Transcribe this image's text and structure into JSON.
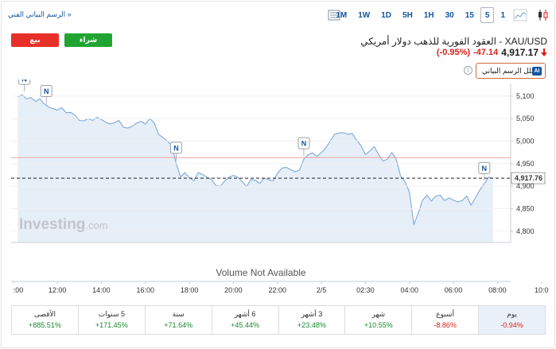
{
  "toolbar": {
    "fullscreen_label": "الرسم البياني الفني »",
    "intervals": [
      "1M",
      "1W",
      "1D",
      "5H",
      "1H",
      "30",
      "15",
      "5",
      "1"
    ],
    "selected_interval": "5"
  },
  "instrument": {
    "title": "XAU/USD - العقود الفورية للذهب دولار أمريكي",
    "price": "4,917.17",
    "change": "-47.14",
    "change_pct": "(-0.95%)"
  },
  "buttons": {
    "buy": "شراء",
    "sell": "بيع",
    "analyze": "حلل الرسم البياني",
    "ai_badge": "AI"
  },
  "colors": {
    "line": "#7fa9d6",
    "area": "#e6eef8",
    "down": "#d91e18",
    "up": "#1a8a2c",
    "buy": "#20a532",
    "sell": "#e8302a"
  },
  "chart_data": {
    "type": "area",
    "watermark": "Investing.com",
    "no_volume_text": "Volume Not Available",
    "x_ticks": [
      ":00",
      "12:00",
      "14:00",
      "16:00",
      "18:00",
      "20:00",
      "22:00",
      "2/5",
      "02:30",
      "04:00",
      "06:00",
      "08:00",
      "10:0"
    ],
    "y_ticks": [
      5100,
      5050,
      5000,
      4950,
      4900,
      4850,
      4800
    ],
    "ylim": [
      4775,
      5128
    ],
    "reference_level": 4963.5,
    "last_value": 4917.76,
    "last_label": "4,917.76",
    "news_marker_label": "N",
    "news_markers_hour": [
      0.3,
      1.3,
      7.2,
      13.0,
      21.2
    ],
    "x_hours": [
      0,
      0.2,
      0.4,
      0.6,
      0.8,
      1.0,
      1.2,
      1.4,
      1.6,
      1.8,
      2.0,
      2.2,
      2.4,
      2.6,
      2.8,
      3.0,
      3.2,
      3.4,
      3.6,
      3.8,
      4.0,
      4.2,
      4.4,
      4.6,
      4.8,
      5.0,
      5.2,
      5.4,
      5.6,
      5.8,
      6.0,
      6.2,
      6.4,
      6.6,
      6.8,
      7.0,
      7.2,
      7.4,
      7.6,
      7.8,
      8.0,
      8.2,
      8.4,
      8.6,
      8.8,
      9.0,
      9.2,
      9.4,
      9.6,
      9.8,
      10.0,
      10.2,
      10.4,
      10.6,
      10.8,
      11.0,
      11.2,
      11.4,
      11.6,
      11.8,
      12.0,
      12.2,
      12.4,
      12.6,
      12.8,
      13.0,
      13.2,
      13.4,
      13.6,
      13.8,
      14.0,
      14.2,
      14.4,
      14.6,
      14.8,
      15.0,
      15.2,
      15.4,
      15.6,
      15.8,
      16.0,
      16.2,
      16.4,
      16.6,
      16.8,
      17.0,
      17.2,
      17.4,
      17.6,
      17.8,
      18.0,
      18.2,
      18.4,
      18.6,
      18.8,
      19.0,
      19.2,
      19.4,
      19.6,
      19.8,
      20.0,
      20.2,
      20.4,
      20.6,
      20.8,
      21.0,
      21.2,
      21.4,
      21.6
    ],
    "values": [
      5098,
      5103,
      5094,
      5097,
      5088,
      5094,
      5083,
      5076,
      5072,
      5069,
      5074,
      5063,
      5064,
      5058,
      5046,
      5045,
      5050,
      5046,
      5053,
      5048,
      5042,
      5038,
      5041,
      5046,
      5031,
      5029,
      5033,
      5040,
      5044,
      5038,
      5050,
      5041,
      5015,
      5008,
      5000,
      4990,
      4950,
      4921,
      4930,
      4919,
      4912,
      4930,
      4926,
      4920,
      4915,
      4902,
      4900,
      4911,
      4920,
      4924,
      4920,
      4910,
      4900,
      4915,
      4913,
      4906,
      4918,
      4914,
      4912,
      4928,
      4940,
      4942,
      4937,
      4932,
      4935,
      4960,
      4970,
      4974,
      4966,
      4975,
      4985,
      5000,
      5015,
      5018,
      5019,
      5015,
      5017,
      5002,
      4990,
      4970,
      4978,
      4988,
      4970,
      4956,
      4960,
      4975,
      4960,
      4922,
      4910,
      4887,
      4815,
      4840,
      4869,
      4880,
      4867,
      4878,
      4880,
      4868,
      4874,
      4869,
      4865,
      4868,
      4878,
      4858,
      4874,
      4892,
      4905,
      4920,
      4917
    ]
  },
  "performance": [
    {
      "label": "يوم",
      "value": "-0.94%",
      "dir": "neg"
    },
    {
      "label": "أسبوع",
      "value": "-8.86%",
      "dir": "neg"
    },
    {
      "label": "شهر",
      "value": "+10.55%",
      "dir": "pos"
    },
    {
      "label": "3 أشهر",
      "value": "+23.48%",
      "dir": "pos"
    },
    {
      "label": "6 أشهر",
      "value": "+45.44%",
      "dir": "pos"
    },
    {
      "label": "سنة",
      "value": "+71.64%",
      "dir": "pos"
    },
    {
      "label": "5 سنوات",
      "value": "+171.45%",
      "dir": "pos"
    },
    {
      "label": "الأقصى",
      "value": "+885.51%",
      "dir": "pos"
    }
  ]
}
